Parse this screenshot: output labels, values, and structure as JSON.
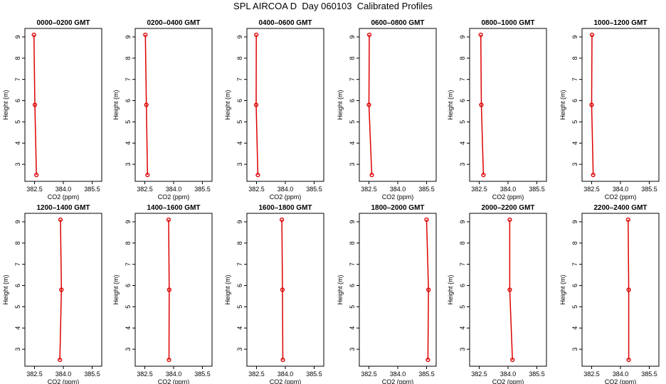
{
  "title": "SPL AIRCOA D  Day 060103  Calibrated Profiles",
  "xlabel": "CO2 (ppm)",
  "ylabel": "Height (m)",
  "colors": {
    "line": "#dd0000",
    "axis": "#000000"
  },
  "chart_data": [
    {
      "type": "line",
      "title": "0000–0200 GMT",
      "xlim": [
        382.0,
        386.0
      ],
      "ylim": [
        2.2,
        9.4
      ],
      "xticks": [
        "382.5",
        "384.0",
        "385.5"
      ],
      "yticks": [
        "3",
        "4",
        "5",
        "6",
        "7",
        "8",
        "9"
      ],
      "x": [
        382.47,
        382.52,
        382.6
      ],
      "y": [
        9.1,
        5.8,
        2.5
      ]
    },
    {
      "type": "line",
      "title": "0200–0400 GMT",
      "xlim": [
        382.0,
        386.0
      ],
      "ylim": [
        2.2,
        9.4
      ],
      "xticks": [
        "382.5",
        "384.0",
        "385.5"
      ],
      "yticks": [
        "3",
        "4",
        "5",
        "6",
        "7",
        "8",
        "9"
      ],
      "x": [
        382.53,
        382.58,
        382.64
      ],
      "y": [
        9.1,
        5.8,
        2.5
      ]
    },
    {
      "type": "line",
      "title": "0400–0600 GMT",
      "xlim": [
        382.0,
        386.0
      ],
      "ylim": [
        2.2,
        9.4
      ],
      "xticks": [
        "382.5",
        "384.0",
        "385.5"
      ],
      "yticks": [
        "3",
        "4",
        "5",
        "6",
        "7",
        "8",
        "9"
      ],
      "x": [
        382.49,
        382.48,
        382.57
      ],
      "y": [
        9.1,
        5.8,
        2.5
      ]
    },
    {
      "type": "line",
      "title": "0600–0800 GMT",
      "xlim": [
        382.0,
        386.0
      ],
      "ylim": [
        2.2,
        9.4
      ],
      "xticks": [
        "382.5",
        "384.0",
        "385.5"
      ],
      "yticks": [
        "3",
        "4",
        "5",
        "6",
        "7",
        "8",
        "9"
      ],
      "x": [
        382.52,
        382.5,
        382.65
      ],
      "y": [
        9.1,
        5.8,
        2.5
      ]
    },
    {
      "type": "line",
      "title": "0800–1000 GMT",
      "xlim": [
        382.0,
        386.0
      ],
      "ylim": [
        2.2,
        9.4
      ],
      "xticks": [
        "382.5",
        "384.0",
        "385.5"
      ],
      "yticks": [
        "3",
        "4",
        "5",
        "6",
        "7",
        "8",
        "9"
      ],
      "x": [
        382.58,
        382.61,
        382.72
      ],
      "y": [
        9.1,
        5.8,
        2.5
      ]
    },
    {
      "type": "line",
      "title": "1000–1200 GMT",
      "xlim": [
        382.0,
        386.0
      ],
      "ylim": [
        2.2,
        9.4
      ],
      "xticks": [
        "382.5",
        "384.0",
        "385.5"
      ],
      "yticks": [
        "3",
        "4",
        "5",
        "6",
        "7",
        "8",
        "9"
      ],
      "x": [
        382.52,
        382.5,
        382.58
      ],
      "y": [
        9.1,
        5.8,
        2.5
      ]
    },
    {
      "type": "line",
      "title": "1200–1400 GMT",
      "xlim": [
        382.0,
        386.0
      ],
      "ylim": [
        2.2,
        9.4
      ],
      "xticks": [
        "382.5",
        "384.0",
        "385.5"
      ],
      "yticks": [
        "3",
        "4",
        "5",
        "6",
        "7",
        "8",
        "9"
      ],
      "x": [
        383.85,
        383.9,
        383.82
      ],
      "y": [
        9.1,
        5.8,
        2.5
      ]
    },
    {
      "type": "line",
      "title": "1400–1600 GMT",
      "xlim": [
        382.0,
        386.0
      ],
      "ylim": [
        2.2,
        9.4
      ],
      "xticks": [
        "382.5",
        "384.0",
        "385.5"
      ],
      "yticks": [
        "3",
        "4",
        "5",
        "6",
        "7",
        "8",
        "9"
      ],
      "x": [
        383.74,
        383.77,
        383.76
      ],
      "y": [
        9.1,
        5.8,
        2.5
      ]
    },
    {
      "type": "line",
      "title": "1600–1800 GMT",
      "xlim": [
        382.0,
        386.0
      ],
      "ylim": [
        2.2,
        9.4
      ],
      "xticks": [
        "382.5",
        "384.0",
        "385.5"
      ],
      "yticks": [
        "3",
        "4",
        "5",
        "6",
        "7",
        "8",
        "9"
      ],
      "x": [
        383.82,
        383.85,
        383.87
      ],
      "y": [
        9.1,
        5.8,
        2.5
      ]
    },
    {
      "type": "line",
      "title": "1800–2000 GMT",
      "xlim": [
        382.0,
        386.0
      ],
      "ylim": [
        2.2,
        9.4
      ],
      "xticks": [
        "382.5",
        "384.0",
        "385.5"
      ],
      "yticks": [
        "3",
        "4",
        "5",
        "6",
        "7",
        "8",
        "9"
      ],
      "x": [
        385.5,
        385.6,
        385.57
      ],
      "y": [
        9.1,
        5.8,
        2.5
      ]
    },
    {
      "type": "line",
      "title": "2000–2200 GMT",
      "xlim": [
        382.0,
        386.0
      ],
      "ylim": [
        2.2,
        9.4
      ],
      "xticks": [
        "382.5",
        "384.0",
        "385.5"
      ],
      "yticks": [
        "3",
        "4",
        "5",
        "6",
        "7",
        "8",
        "9"
      ],
      "x": [
        384.09,
        384.09,
        384.23
      ],
      "y": [
        9.1,
        5.8,
        2.5
      ]
    },
    {
      "type": "line",
      "title": "2200–2400 GMT",
      "xlim": [
        382.0,
        386.0
      ],
      "ylim": [
        2.2,
        9.4
      ],
      "xticks": [
        "382.5",
        "384.0",
        "385.5"
      ],
      "yticks": [
        "3",
        "4",
        "5",
        "6",
        "7",
        "8",
        "9"
      ],
      "x": [
        384.4,
        384.43,
        384.43
      ],
      "y": [
        9.1,
        5.8,
        2.5
      ]
    }
  ]
}
